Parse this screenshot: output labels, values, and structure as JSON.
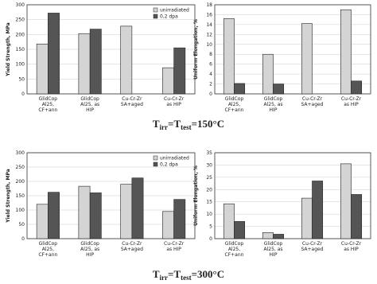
{
  "chart_data": [
    {
      "type": "bar",
      "ylabel": "Yield Strength, MPa",
      "categories": [
        "GlidCop\nAl25,\nCF+ann",
        "GlidCop\nAl25, as\nHIP",
        "Cu-Cr-Zr\nSA+aged",
        "Cu-Cr-Zr\nas HIP"
      ],
      "series": [
        {
          "name": "unirradiated",
          "color": "#d4d4d4",
          "values": [
            168,
            203,
            228,
            88
          ]
        },
        {
          "name": "0,2 dpa",
          "color": "#555555",
          "values": [
            272,
            218,
            null,
            155
          ]
        }
      ],
      "ylim": [
        0,
        300
      ],
      "yticks": [
        0,
        50,
        100,
        150,
        200,
        250,
        300
      ],
      "grid": true,
      "legend": "upper right"
    },
    {
      "type": "bar",
      "ylabel": "Uniform Elongation, %",
      "categories": [
        "GlidCop\nAl25,\nCF+ann",
        "GlidCop\nAl25, as\nHIP",
        "Cu-Cr-Zr\nSA+aged",
        "Cu-Cr-Zr\nas HIP"
      ],
      "series": [
        {
          "color": "#d4d4d4",
          "values": [
            15.2,
            8.0,
            14.2,
            17.0
          ]
        },
        {
          "color": "#555555",
          "values": [
            2.1,
            2.0,
            null,
            2.6
          ]
        }
      ],
      "ylim": [
        0,
        18
      ],
      "yticks": [
        0,
        2,
        4,
        6,
        8,
        10,
        12,
        14,
        16,
        18
      ],
      "grid": true
    },
    {
      "type": "bar",
      "ylabel": "Yield Strength, MPa",
      "categories": [
        "GlidCop\nAl25,\nCF+ann",
        "GlidCop\nAl25, as\nHIP",
        "Cu-Cr-Zr\nSA+aged",
        "Cu-Cr-Zr\nas HIP"
      ],
      "series": [
        {
          "name": "unirradiated",
          "color": "#d4d4d4",
          "values": [
            120,
            183,
            190,
            95
          ]
        },
        {
          "name": "0,2 dpa",
          "color": "#555555",
          "values": [
            162,
            160,
            212,
            137
          ]
        }
      ],
      "ylim": [
        0,
        300
      ],
      "yticks": [
        0,
        50,
        100,
        150,
        200,
        250,
        300
      ],
      "grid": true,
      "legend": "upper right"
    },
    {
      "type": "bar",
      "ylabel": "Uniform Elongation, %",
      "categories": [
        "GlidCop\nAl25,\nCF+ann",
        "GlidCop\nAl25, as\nHIP",
        "Cu-Cr-Zr\nSA+aged",
        "Cu-Cr-Zr\nas HIP"
      ],
      "series": [
        {
          "color": "#d4d4d4",
          "values": [
            14.2,
            2.5,
            16.5,
            30.5
          ]
        },
        {
          "color": "#555555",
          "values": [
            7.0,
            1.8,
            23.5,
            18.0
          ]
        }
      ],
      "ylim": [
        0,
        35
      ],
      "yticks": [
        0,
        5,
        10,
        15,
        20,
        25,
        30,
        35
      ],
      "grid": true
    }
  ],
  "captions": [
    {
      "t1": "T",
      "sub1": "irr",
      "t2": "=T",
      "sub2": "test",
      "t3": "=150°C"
    },
    {
      "t1": "T",
      "sub1": "irr",
      "t2": "=T",
      "sub2": "test",
      "t3": "=300°C"
    }
  ]
}
